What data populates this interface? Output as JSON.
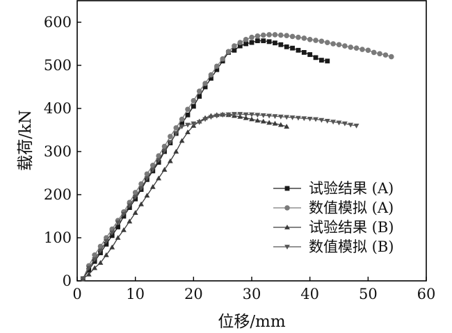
{
  "chart_data": {
    "type": "line",
    "xlabel": "位移/mm",
    "ylabel": "载荷/kN",
    "xlim": [
      0,
      60
    ],
    "ylim": [
      0,
      650
    ],
    "x_ticks": [
      0,
      10,
      20,
      30,
      40,
      50,
      60
    ],
    "y_ticks": [
      0,
      100,
      200,
      300,
      400,
      500,
      600
    ],
    "grid": false,
    "legend_position": "lower-right",
    "series": [
      {
        "name": "试验结果 (A)",
        "marker": "square",
        "color": "#1a1a1a",
        "x": [
          1,
          2,
          3,
          4,
          5,
          6,
          7,
          8,
          9,
          10,
          11,
          12,
          13,
          14,
          15,
          16,
          17,
          18,
          19,
          20,
          21,
          22,
          23,
          24,
          25,
          26,
          27,
          28,
          29,
          30,
          31,
          32,
          33,
          34,
          35,
          36,
          37,
          38,
          39,
          40,
          41,
          42,
          43
        ],
        "y": [
          5,
          25,
          45,
          65,
          85,
          105,
          125,
          150,
          170,
          190,
          212,
          235,
          255,
          275,
          300,
          320,
          342,
          365,
          385,
          405,
          428,
          450,
          470,
          490,
          510,
          530,
          535,
          545,
          550,
          553,
          557,
          557,
          555,
          552,
          548,
          543,
          540,
          535,
          530,
          525,
          518,
          512,
          510
        ]
      },
      {
        "name": "数值模拟 (A)",
        "marker": "circle",
        "color": "#7a7a7a",
        "x": [
          1,
          2,
          3,
          4,
          5,
          6,
          7,
          8,
          9,
          10,
          11,
          12,
          13,
          14,
          15,
          16,
          17,
          18,
          19,
          20,
          21,
          22,
          23,
          24,
          25,
          26,
          27,
          28,
          29,
          30,
          31,
          32,
          33,
          34,
          35,
          36,
          37,
          38,
          39,
          40,
          41,
          42,
          43,
          44,
          45,
          46,
          47,
          48,
          49,
          50,
          51,
          52,
          53,
          54
        ],
        "y": [
          5,
          35,
          60,
          80,
          100,
          120,
          140,
          160,
          182,
          205,
          225,
          248,
          268,
          290,
          312,
          335,
          355,
          375,
          398,
          418,
          440,
          458,
          478,
          498,
          515,
          532,
          545,
          553,
          560,
          565,
          568,
          570,
          571,
          571,
          570,
          569,
          567,
          565,
          563,
          560,
          558,
          556,
          553,
          550,
          548,
          545,
          542,
          540,
          537,
          535,
          530,
          527,
          524,
          520
        ]
      },
      {
        "name": "试验结果 (B)",
        "marker": "triangle-up",
        "color": "#3a3a3a",
        "x": [
          1,
          2,
          3,
          4,
          5,
          6,
          7,
          8,
          9,
          10,
          11,
          12,
          13,
          14,
          15,
          16,
          17,
          18,
          19,
          20,
          21,
          22,
          23,
          24,
          25,
          26,
          27,
          28,
          29,
          30,
          31,
          32,
          33,
          34,
          35,
          36
        ],
        "y": [
          5,
          15,
          30,
          42,
          60,
          78,
          100,
          118,
          138,
          158,
          178,
          198,
          218,
          238,
          258,
          278,
          300,
          325,
          345,
          360,
          370,
          378,
          383,
          385,
          386,
          385,
          383,
          381,
          378,
          375,
          372,
          370,
          367,
          365,
          362,
          358
        ]
      },
      {
        "name": "数值模拟 (B)",
        "marker": "triangle-down",
        "color": "#555555",
        "x": [
          1,
          2,
          3,
          4,
          5,
          6,
          7,
          8,
          9,
          10,
          11,
          12,
          13,
          14,
          15,
          16,
          17,
          18,
          19,
          20,
          21,
          22,
          23,
          24,
          25,
          26,
          27,
          28,
          29,
          30,
          31,
          32,
          33,
          34,
          35,
          36,
          37,
          38,
          39,
          40,
          41,
          42,
          43,
          44,
          45,
          46,
          47,
          48
        ],
        "y": [
          5,
          30,
          50,
          70,
          92,
          112,
          135,
          155,
          175,
          195,
          215,
          238,
          258,
          280,
          302,
          322,
          342,
          358,
          362,
          365,
          368,
          375,
          380,
          383,
          385,
          386,
          387,
          387,
          386,
          386,
          385,
          384,
          383,
          382,
          381,
          380,
          379,
          378,
          377,
          376,
          375,
          373,
          371,
          369,
          367,
          365,
          362,
          360
        ]
      }
    ]
  }
}
